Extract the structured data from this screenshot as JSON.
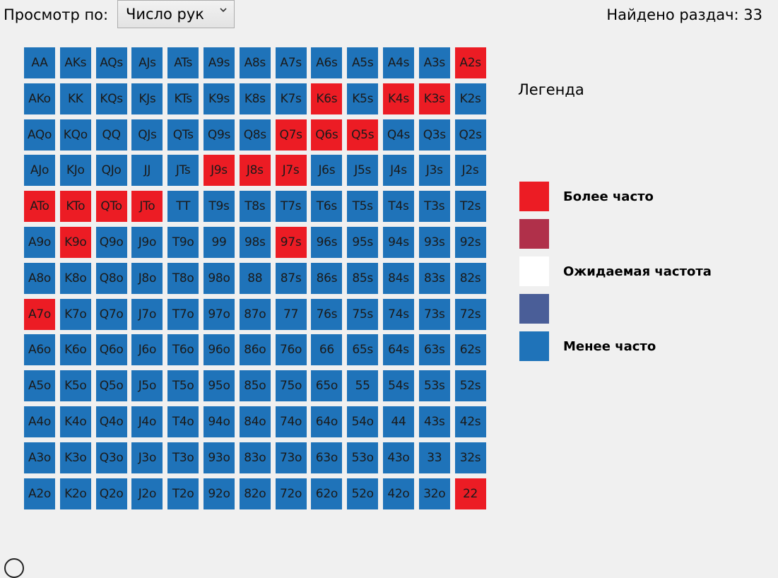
{
  "header": {
    "view_by_label": "Просмотр по:",
    "view_by_selected": "Число рук",
    "found_hands_text": "Найдено раздач: 33"
  },
  "grid": {
    "rows": [
      [
        "AA",
        "AKs",
        "AQs",
        "AJs",
        "ATs",
        "A9s",
        "A8s",
        "A7s",
        "A6s",
        "A5s",
        "A4s",
        "A3s",
        "A2s"
      ],
      [
        "AKo",
        "KK",
        "KQs",
        "KJs",
        "KTs",
        "K9s",
        "K8s",
        "K7s",
        "K6s",
        "K5s",
        "K4s",
        "K3s",
        "K2s"
      ],
      [
        "AQo",
        "KQo",
        "QQ",
        "QJs",
        "QTs",
        "Q9s",
        "Q8s",
        "Q7s",
        "Q6s",
        "Q5s",
        "Q4s",
        "Q3s",
        "Q2s"
      ],
      [
        "AJo",
        "KJo",
        "QJo",
        "JJ",
        "JTs",
        "J9s",
        "J8s",
        "J7s",
        "J6s",
        "J5s",
        "J4s",
        "J3s",
        "J2s"
      ],
      [
        "ATo",
        "KTo",
        "QTo",
        "JTo",
        "TT",
        "T9s",
        "T8s",
        "T7s",
        "T6s",
        "T5s",
        "T4s",
        "T3s",
        "T2s"
      ],
      [
        "A9o",
        "K9o",
        "Q9o",
        "J9o",
        "T9o",
        "99",
        "98s",
        "97s",
        "96s",
        "95s",
        "94s",
        "93s",
        "92s"
      ],
      [
        "A8o",
        "K8o",
        "Q8o",
        "J8o",
        "T8o",
        "98o",
        "88",
        "87s",
        "86s",
        "85s",
        "84s",
        "83s",
        "82s"
      ],
      [
        "A7o",
        "K7o",
        "Q7o",
        "J7o",
        "T7o",
        "97o",
        "87o",
        "77",
        "76s",
        "75s",
        "74s",
        "73s",
        "72s"
      ],
      [
        "A6o",
        "K6o",
        "Q6o",
        "J6o",
        "T6o",
        "96o",
        "86o",
        "76o",
        "66",
        "65s",
        "64s",
        "63s",
        "62s"
      ],
      [
        "A5o",
        "K5o",
        "Q5o",
        "J5o",
        "T5o",
        "95o",
        "85o",
        "75o",
        "65o",
        "55",
        "54s",
        "53s",
        "52s"
      ],
      [
        "A4o",
        "K4o",
        "Q4o",
        "J4o",
        "T4o",
        "94o",
        "84o",
        "74o",
        "64o",
        "54o",
        "44",
        "43s",
        "42s"
      ],
      [
        "A3o",
        "K3o",
        "Q3o",
        "J3o",
        "T3o",
        "93o",
        "83o",
        "73o",
        "63o",
        "53o",
        "43o",
        "33",
        "32s"
      ],
      [
        "A2o",
        "K2o",
        "Q2o",
        "J2o",
        "T2o",
        "92o",
        "82o",
        "72o",
        "62o",
        "52o",
        "42o",
        "32o",
        "22"
      ]
    ],
    "more_frequent_hands": [
      "A2s",
      "K6s",
      "K4s",
      "K3s",
      "Q7s",
      "Q6s",
      "Q5s",
      "J9s",
      "J8s",
      "J7s",
      "ATo",
      "KTo",
      "QTo",
      "JTo",
      "K9o",
      "97s",
      "A7o",
      "22"
    ],
    "colors": {
      "more": "#ec1c24",
      "less": "#1f73b9"
    }
  },
  "legend": {
    "title": "Легенда",
    "items": [
      {
        "label": "Более часто",
        "color": "#ec1c24"
      },
      {
        "label": "",
        "color": "#b0304a"
      },
      {
        "label": "Ожидаемая частота",
        "color": "#ffffff"
      },
      {
        "label": "",
        "color": "#4a5e98"
      },
      {
        "label": "Менее часто",
        "color": "#1f73b9"
      }
    ]
  }
}
